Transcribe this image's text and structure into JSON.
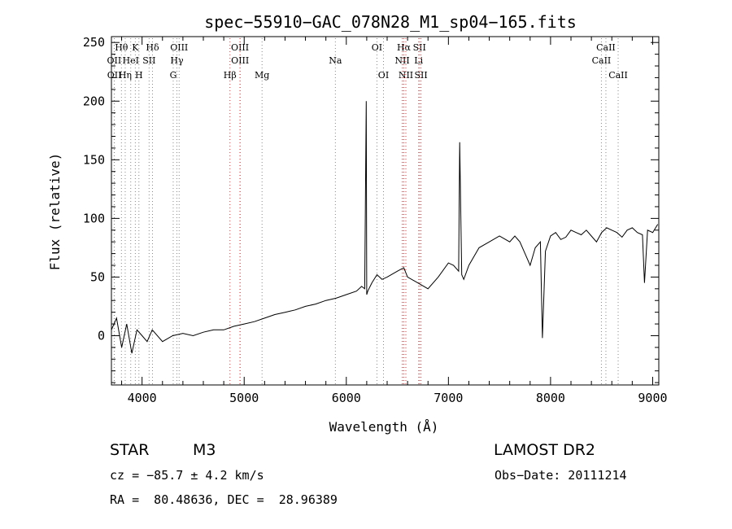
{
  "chart_data": {
    "type": "line",
    "title": "spec−55910−GAC_078N28_M1_sp04−165.fits",
    "xlabel": "Wavelength (Å)",
    "ylabel": "Flux (relative)",
    "xlim": [
      3700,
      9060
    ],
    "ylim": [
      -42,
      255
    ],
    "xticks": [
      "4000",
      "5000",
      "6000",
      "7000",
      "8000",
      "9000"
    ],
    "yticks": [
      "0",
      "50",
      "100",
      "150",
      "200",
      "250"
    ],
    "line_color": "#000000",
    "marker_line_color_blue": "#888888",
    "marker_line_color_red": "#d33333",
    "series": [
      {
        "x": [
          3700,
          3750,
          3800,
          3850,
          3900,
          3950,
          4000,
          4050,
          4100,
          4200,
          4300,
          4400,
          4500,
          4600,
          4700,
          4800,
          4900,
          5000,
          5100,
          5200,
          5300,
          5400,
          5500,
          5600,
          5700,
          5800,
          5900,
          6000,
          6100,
          6150,
          6180,
          6195,
          6200,
          6210,
          6250,
          6300,
          6350,
          6400,
          6500,
          6563,
          6600,
          6700,
          6800,
          6900,
          7000,
          7050,
          7100,
          7110,
          7130,
          7150,
          7200,
          7300,
          7400,
          7500,
          7600,
          7650,
          7700,
          7750,
          7800,
          7850,
          7900,
          7920,
          7950,
          8000,
          8050,
          8100,
          8150,
          8200,
          8250,
          8300,
          8350,
          8400,
          8450,
          8500,
          8550,
          8600,
          8650,
          8700,
          8750,
          8800,
          8850,
          8900,
          8920,
          8950,
          9000,
          9050
        ],
        "y": [
          5,
          15,
          -10,
          10,
          -15,
          5,
          0,
          -5,
          5,
          -5,
          0,
          2,
          0,
          3,
          5,
          5,
          8,
          10,
          12,
          15,
          18,
          20,
          22,
          25,
          27,
          30,
          32,
          35,
          38,
          42,
          40,
          200,
          35,
          38,
          45,
          52,
          48,
          50,
          55,
          58,
          50,
          45,
          40,
          50,
          62,
          60,
          55,
          165,
          52,
          48,
          60,
          75,
          80,
          85,
          80,
          85,
          80,
          70,
          60,
          75,
          80,
          -2,
          72,
          85,
          88,
          82,
          84,
          90,
          88,
          86,
          90,
          85,
          80,
          88,
          92,
          90,
          88,
          84,
          90,
          92,
          88,
          86,
          45,
          90,
          88,
          95
        ]
      }
    ],
    "line_markers": [
      {
        "label": "Hθ",
        "x": 3798,
        "row": 1,
        "color": "blue"
      },
      {
        "label": "OII",
        "x": 3727,
        "row": 2,
        "color": "blue"
      },
      {
        "label": "OII",
        "x": 3729,
        "row": 3,
        "color": "blue"
      },
      {
        "label": "K",
        "x": 3934,
        "row": 1,
        "color": "blue"
      },
      {
        "label": "HeI",
        "x": 3889,
        "row": 2,
        "color": "blue"
      },
      {
        "label": "Hη",
        "x": 3835,
        "row": 3,
        "color": "blue"
      },
      {
        "label": "Hδ",
        "x": 4102,
        "row": 1,
        "color": "blue"
      },
      {
        "label": "SII",
        "x": 4069,
        "row": 2,
        "color": "blue"
      },
      {
        "label": "H",
        "x": 3969,
        "row": 3,
        "color": "blue"
      },
      {
        "label": "OIII",
        "x": 4363,
        "row": 1,
        "color": "blue"
      },
      {
        "label": "Hγ",
        "x": 4341,
        "row": 2,
        "color": "blue"
      },
      {
        "label": "G",
        "x": 4305,
        "row": 3,
        "color": "blue"
      },
      {
        "label": "OIII",
        "x": 4959,
        "row": 1,
        "color": "red"
      },
      {
        "label": "OIII",
        "x": 4960,
        "row": 2,
        "color": "red"
      },
      {
        "label": "Hβ",
        "x": 4861,
        "row": 3,
        "color": "red"
      },
      {
        "label": "Mg",
        "x": 5175,
        "row": 3,
        "color": "blue"
      },
      {
        "label": "Na",
        "x": 5893,
        "row": 2,
        "color": "blue"
      },
      {
        "label": "OI",
        "x": 6300,
        "row": 1,
        "color": "blue"
      },
      {
        "label": "OI",
        "x": 6364,
        "row": 3,
        "color": "blue"
      },
      {
        "label": "Hα",
        "x": 6563,
        "row": 1,
        "color": "red"
      },
      {
        "label": "SII",
        "x": 6716,
        "row": 1,
        "color": "red"
      },
      {
        "label": "NII",
        "x": 6548,
        "row": 2,
        "color": "red"
      },
      {
        "label": "Li",
        "x": 6708,
        "row": 2,
        "color": "blue"
      },
      {
        "label": "NII",
        "x": 6583,
        "row": 3,
        "color": "red"
      },
      {
        "label": "SII",
        "x": 6731,
        "row": 3,
        "color": "red"
      },
      {
        "label": "CaII",
        "x": 8542,
        "row": 1,
        "color": "blue"
      },
      {
        "label": "CaII",
        "x": 8498,
        "row": 2,
        "color": "blue"
      },
      {
        "label": "CaII",
        "x": 8662,
        "row": 3,
        "color": "blue"
      }
    ]
  },
  "info": {
    "class": "STAR",
    "subclass": "M3",
    "survey": "LAMOST DR2",
    "cz": "cz = −85.7 ± 4.2 km/s",
    "obs_date": "Obs−Date: 20111214",
    "radec": "RA =  80.48636, DEC =  28.96389"
  }
}
